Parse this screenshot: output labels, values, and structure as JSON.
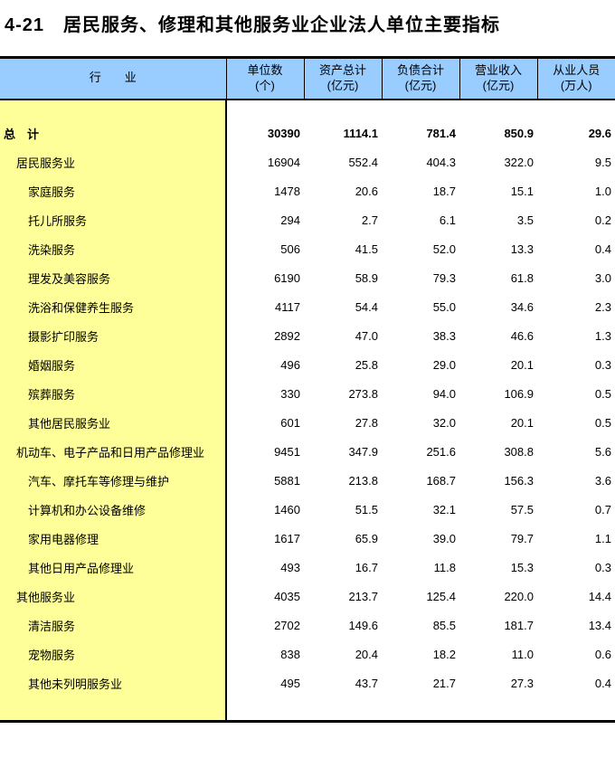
{
  "page": {
    "title": "4-21　居民服务、修理和其他服务业企业法人单位主要指标"
  },
  "colors": {
    "header_bg": "#99CCFF",
    "industry_column_bg": "#FFFF99",
    "border": "#000000",
    "text": "#000000"
  },
  "table": {
    "columns": [
      {
        "label": "行　　业",
        "unit": ""
      },
      {
        "label": "单位数",
        "unit": "(个)"
      },
      {
        "label": "资产总计",
        "unit": "(亿元)"
      },
      {
        "label": "负债合计",
        "unit": "(亿元)"
      },
      {
        "label": "营业收入",
        "unit": "(亿元)"
      },
      {
        "label": "从业人员",
        "unit": "(万人)"
      }
    ],
    "rows": [
      {
        "label": "总　计",
        "indent": 0,
        "bold": true,
        "values": [
          "30390",
          "1114.1",
          "781.4",
          "850.9",
          "29.6"
        ]
      },
      {
        "label": "居民服务业",
        "indent": 1,
        "bold": false,
        "values": [
          "16904",
          "552.4",
          "404.3",
          "322.0",
          "9.5"
        ]
      },
      {
        "label": "家庭服务",
        "indent": 2,
        "bold": false,
        "values": [
          "1478",
          "20.6",
          "18.7",
          "15.1",
          "1.0"
        ]
      },
      {
        "label": "托儿所服务",
        "indent": 2,
        "bold": false,
        "values": [
          "294",
          "2.7",
          "6.1",
          "3.5",
          "0.2"
        ]
      },
      {
        "label": "洗染服务",
        "indent": 2,
        "bold": false,
        "values": [
          "506",
          "41.5",
          "52.0",
          "13.3",
          "0.4"
        ]
      },
      {
        "label": "理发及美容服务",
        "indent": 2,
        "bold": false,
        "values": [
          "6190",
          "58.9",
          "79.3",
          "61.8",
          "3.0"
        ]
      },
      {
        "label": "洗浴和保健养生服务",
        "indent": 2,
        "bold": false,
        "values": [
          "4117",
          "54.4",
          "55.0",
          "34.6",
          "2.3"
        ]
      },
      {
        "label": "摄影扩印服务",
        "indent": 2,
        "bold": false,
        "values": [
          "2892",
          "47.0",
          "38.3",
          "46.6",
          "1.3"
        ]
      },
      {
        "label": "婚姻服务",
        "indent": 2,
        "bold": false,
        "values": [
          "496",
          "25.8",
          "29.0",
          "20.1",
          "0.3"
        ]
      },
      {
        "label": "殡葬服务",
        "indent": 2,
        "bold": false,
        "values": [
          "330",
          "273.8",
          "94.0",
          "106.9",
          "0.5"
        ]
      },
      {
        "label": "其他居民服务业",
        "indent": 2,
        "bold": false,
        "values": [
          "601",
          "27.8",
          "32.0",
          "20.1",
          "0.5"
        ]
      },
      {
        "label": "机动车、电子产品和日用产品修理业",
        "indent": 1,
        "bold": false,
        "values": [
          "9451",
          "347.9",
          "251.6",
          "308.8",
          "5.6"
        ]
      },
      {
        "label": "汽车、摩托车等修理与维护",
        "indent": 2,
        "bold": false,
        "values": [
          "5881",
          "213.8",
          "168.7",
          "156.3",
          "3.6"
        ]
      },
      {
        "label": "计算机和办公设备维修",
        "indent": 2,
        "bold": false,
        "values": [
          "1460",
          "51.5",
          "32.1",
          "57.5",
          "0.7"
        ]
      },
      {
        "label": "家用电器修理",
        "indent": 2,
        "bold": false,
        "values": [
          "1617",
          "65.9",
          "39.0",
          "79.7",
          "1.1"
        ]
      },
      {
        "label": "其他日用产品修理业",
        "indent": 2,
        "bold": false,
        "values": [
          "493",
          "16.7",
          "11.8",
          "15.3",
          "0.3"
        ]
      },
      {
        "label": "其他服务业",
        "indent": 1,
        "bold": false,
        "values": [
          "4035",
          "213.7",
          "125.4",
          "220.0",
          "14.4"
        ]
      },
      {
        "label": "清洁服务",
        "indent": 2,
        "bold": false,
        "values": [
          "2702",
          "149.6",
          "85.5",
          "181.7",
          "13.4"
        ]
      },
      {
        "label": "宠物服务",
        "indent": 2,
        "bold": false,
        "values": [
          "838",
          "20.4",
          "18.2",
          "11.0",
          "0.6"
        ]
      },
      {
        "label": "其他未列明服务业",
        "indent": 2,
        "bold": false,
        "values": [
          "495",
          "43.7",
          "21.7",
          "27.3",
          "0.4"
        ]
      }
    ]
  }
}
